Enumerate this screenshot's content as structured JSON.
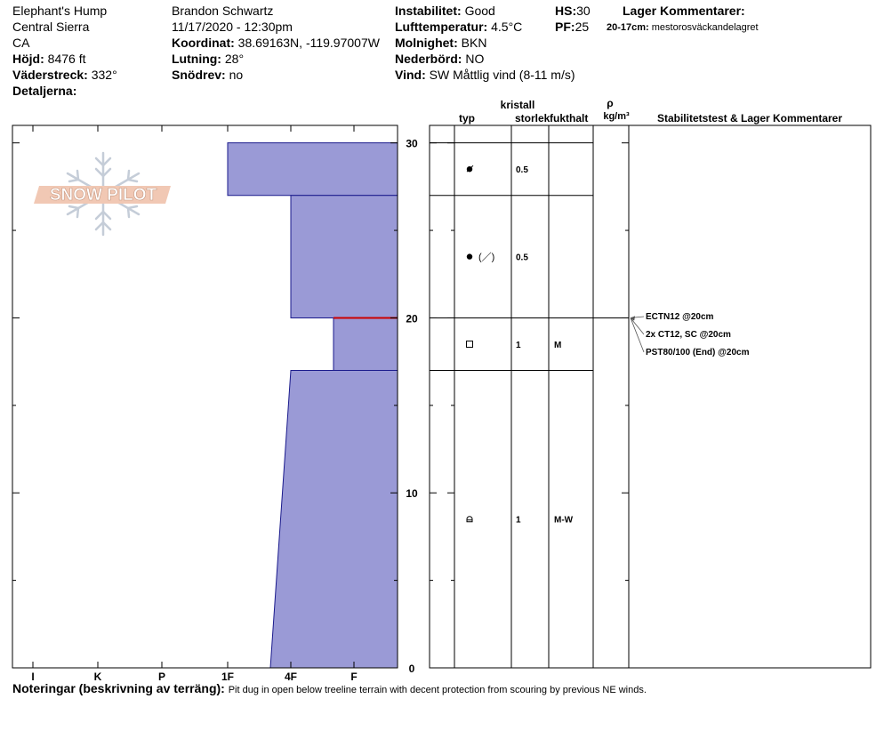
{
  "header": {
    "location": "Elephant's Hump",
    "region": "Central Sierra",
    "state": "CA",
    "elevation_label": "Höjd:",
    "elevation_value": "8476 ft",
    "aspect_label": "Väderstreck:",
    "aspect_value": "332°",
    "details_label": "Detaljerna:",
    "observer": "Brandon Schwartz",
    "datetime": "11/17/2020 - 12:30pm",
    "coord_label": "Koordinat:",
    "coord_value": "38.69163N, -119.97007W",
    "slope_label": "Lutning:",
    "slope_value": "28°",
    "drift_label": "Snödrev:",
    "drift_value": "no",
    "instability_label": "Instabilitet:",
    "instability_value": "Good",
    "airtemp_label": "Lufttemperatur:",
    "airtemp_value": "4.5°C",
    "sky_label": "Molnighet:",
    "sky_value": "BKN",
    "precip_label": "Nederbörd:",
    "precip_value": "NO",
    "wind_label": "Vind:",
    "wind_value": "SW  Måttlig vind (8-11 m/s)",
    "hs_label": "HS:",
    "hs_value": "30",
    "pf_label": "PF:",
    "pf_value": "25",
    "layer_comments_title": "Lager Kommentarer:",
    "layer_comment_range": "20-17cm:",
    "layer_comment_text": "mestorosväckandelagret"
  },
  "logo_text": "SNOW PILOT",
  "columns": {
    "crystal_label": "kristall",
    "type_label": "typ",
    "size_label": "storlek",
    "moisture_label": "fukthalt",
    "rho_label": "ρ",
    "density_unit_label": "kg/m³",
    "stability_label": "Stabilitetstest & Lager Kommentarer"
  },
  "chart_data": {
    "type": "area",
    "x_axis": {
      "tick_labels": [
        "I",
        "K",
        "P",
        "1F",
        "4F",
        "F"
      ],
      "direction": "hardness decreasing to the right"
    },
    "y_axis": {
      "label": "",
      "ylim": [
        0,
        31
      ],
      "tick_labels": [
        "0",
        "10",
        "20",
        "30"
      ],
      "unit": "cm"
    },
    "hardness_profile": [
      {
        "top": 30,
        "bottom": 27,
        "hardness_top": "1F",
        "hardness_bottom": "1F"
      },
      {
        "top": 27,
        "bottom": 20,
        "hardness_top": "4F",
        "hardness_bottom": "4F"
      },
      {
        "top": 20,
        "bottom": 17,
        "hardness_top": "4F-F",
        "hardness_bottom": "4F-F"
      },
      {
        "top": 17,
        "bottom": 0,
        "hardness_top": "4F",
        "hardness_bottom": "4F+"
      }
    ],
    "layers": [
      {
        "top": 30,
        "bottom": 27,
        "grain_icon": "decomposing-particles-icon",
        "grain_text": "",
        "size": "0.5",
        "moisture": ""
      },
      {
        "top": 27,
        "bottom": 20,
        "grain_icon": "rounded-grains-icon",
        "grain_text": "(／)",
        "size": "0.5",
        "moisture": ""
      },
      {
        "top": 20,
        "bottom": 17,
        "grain_icon": "faceted-crystals-icon",
        "grain_text": "",
        "size": "1",
        "moisture": "M"
      },
      {
        "top": 17,
        "bottom": 0,
        "grain_icon": "melt-forms-icon",
        "grain_text": "",
        "size": "1",
        "moisture": "M-W"
      }
    ],
    "critical_layer_depth": 20,
    "critical_layer_color": "#cc0000",
    "fill_color": "#9a9ad6",
    "tests": [
      {
        "depth": 20,
        "text": "ECTN12 @20cm"
      },
      {
        "depth": 20,
        "text": "2x CT12, SC @20cm"
      },
      {
        "depth": 20,
        "text": "PST80/100 (End) @20cm"
      }
    ]
  },
  "notes": {
    "label": "Noteringar (beskrivning av terräng):",
    "text": "Pit dug in open below treeline terrain with decent protection from scouring by previous NE winds."
  }
}
